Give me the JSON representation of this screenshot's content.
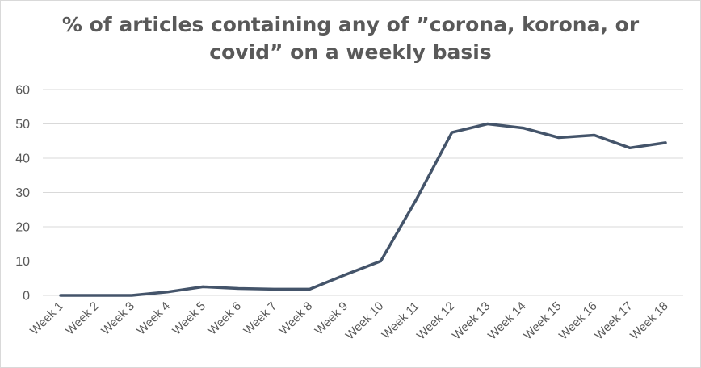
{
  "chart_data": {
    "type": "line",
    "title_lines": [
      "% of articles containing any of ”corona, korona, or",
      "covid” on a weekly basis"
    ],
    "title": "% of articles containing any of ”corona, korona, or covid” on a weekly basis",
    "categories": [
      "Week 1",
      "Week 2",
      "Week 3",
      "Week 4",
      "Week 5",
      "Week 6",
      "Week 7",
      "Week 8",
      "Week 9",
      "Week 10",
      "Week 11",
      "Week 12",
      "Week 13",
      "Week 14",
      "Week 15",
      "Week 16",
      "Week 17",
      "Week 18"
    ],
    "series": [
      {
        "values": [
          0,
          0,
          0,
          1,
          2.5,
          2,
          1.8,
          1.8,
          6,
          10,
          28,
          47.5,
          50,
          48.8,
          46,
          46.7,
          43,
          44.5
        ],
        "color": "#44546a"
      }
    ],
    "yticks": [
      0,
      10,
      20,
      30,
      40,
      50,
      60
    ],
    "ylim": [
      0,
      60
    ],
    "grid": true,
    "legend": "none"
  }
}
